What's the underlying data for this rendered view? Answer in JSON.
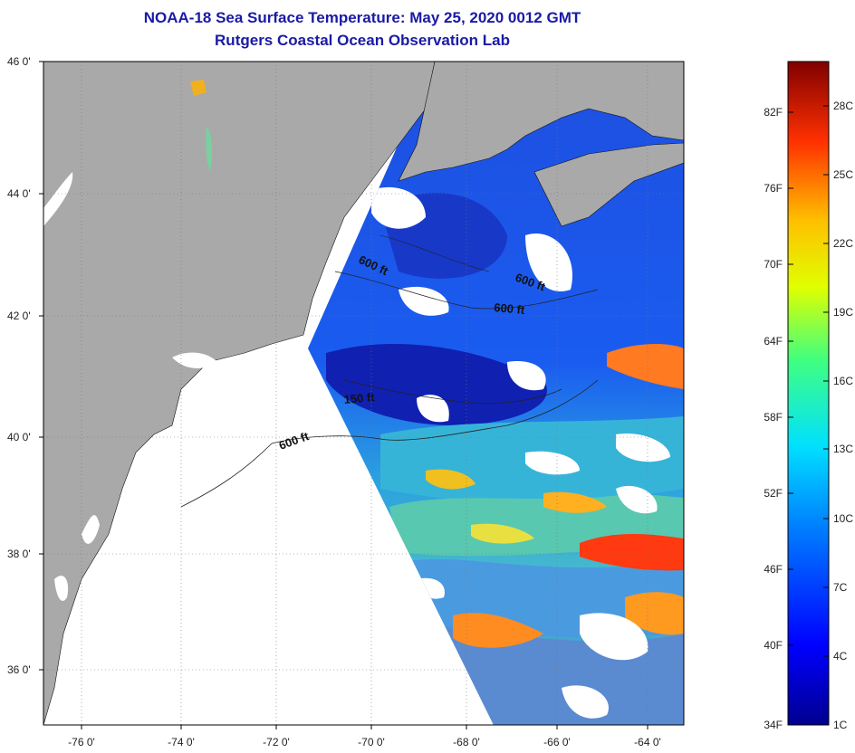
{
  "title": "NOAA-18 Sea Surface Temperature:  May 25, 2020 0012 GMT",
  "subtitle": "Rutgers Coastal Ocean Observation Lab",
  "lat_labels": [
    "46 0'",
    "44 0'",
    "42 0'",
    "40 0'",
    "38 0'",
    "36 0'"
  ],
  "lon_labels": [
    "-76 0'",
    "-74 0'",
    "-72 0'",
    "-70 0'",
    "-68 0'",
    "-66 0'",
    "-64 0'"
  ],
  "contour_labels": [
    "600 ft",
    "600 ft",
    "600 ft",
    "150 ft",
    "600 ft"
  ],
  "scale_f_labels": [
    "82F",
    "76F",
    "70F",
    "64F",
    "58F",
    "52F",
    "46F",
    "40F",
    "34F"
  ],
  "scale_c_labels": [
    "28C",
    "25C",
    "22C",
    "19C",
    "16C",
    "13C",
    "10C",
    "7C",
    "4C",
    "1C"
  ],
  "colors": {
    "land": "#a9a9a9",
    "no_data": "#ffffff",
    "title": "#1a1aa6",
    "cold": "#0000a0",
    "warm": "#ff3000"
  }
}
